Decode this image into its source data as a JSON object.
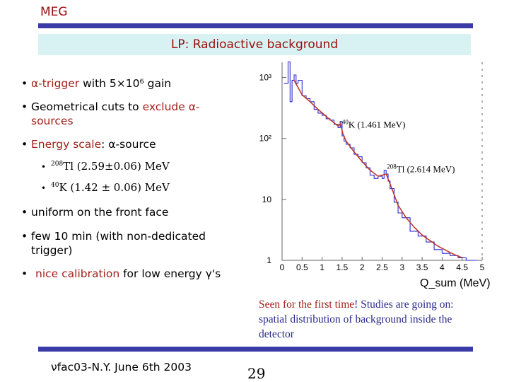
{
  "header": {
    "org": "MEG",
    "title": "LP: Radioactive background"
  },
  "bullets": [
    {
      "pre": "",
      "hl": "α-trigger",
      "post": " with 5×10⁶ gain"
    },
    {
      "pre": "Geometrical cuts to ",
      "hl": "exclude α-",
      "post": "",
      "line2": "sources"
    },
    {
      "pre": "",
      "hl": "Energy scale",
      "post": ": α-source"
    },
    {
      "pre": "uniform on the front face",
      "hl": "",
      "post": ""
    },
    {
      "pre": "few 10 min (with non-dedicated",
      "hl": "",
      "post": "",
      "line2": "trigger)"
    },
    {
      "pre": "",
      "hl": "nice calibration",
      "post": " for low energy γ's"
    }
  ],
  "sub_bullets": [
    {
      "iso": "208",
      "text": "Tl  (2.59±0.06) MeV"
    },
    {
      "iso": "40",
      "text": "K (1.42 ± 0.06) MeV"
    }
  ],
  "caption": {
    "red": "Seen for the first time",
    "rest1": "! Studies are going on:",
    "line2": "spatial distribution of background inside the",
    "line3": "detector"
  },
  "footer": {
    "text": "νfac03-N.Y. June 6th 2003",
    "page": "29"
  },
  "colors": {
    "bar": "#3a3aa8",
    "title_bg": "#d8f2f4",
    "highlight": "#a0201a",
    "data_red": "#c0392b",
    "data_blue": "#2a2ad0"
  },
  "chart_data": {
    "type": "line",
    "xlabel": "Q_sum (MeV)",
    "x_ticks": [
      "0",
      "0.5",
      "1",
      "1.5",
      "2",
      "2.5",
      "3",
      "3.5",
      "4",
      "4.5",
      "5"
    ],
    "y_ticks": [
      "1",
      "10",
      "10²",
      "10³"
    ],
    "xlim": [
      0,
      5
    ],
    "ylim_log10": [
      0,
      3.25
    ],
    "scale_y": "log",
    "annotations": [
      {
        "iso": "40",
        "text": "K (1.461 MeV)",
        "x": 1.5,
        "y": 150
      },
      {
        "iso": "208",
        "text": "Tl (2.614 MeV)",
        "x": 2.62,
        "y": 28
      }
    ],
    "series": [
      {
        "style": "histogram",
        "x": [
          0.05,
          0.15,
          0.2,
          0.25,
          0.3,
          0.35,
          0.4,
          0.5,
          0.6,
          0.7,
          0.8,
          0.9,
          1.0,
          1.1,
          1.2,
          1.3,
          1.4,
          1.45,
          1.5,
          1.55,
          1.6,
          1.7,
          1.8,
          1.9,
          2.0,
          2.1,
          2.2,
          2.3,
          2.4,
          2.5,
          2.55,
          2.6,
          2.65,
          2.7,
          2.8,
          2.9,
          3.0,
          3.2,
          3.4,
          3.6,
          3.8,
          4.0,
          4.2,
          4.4,
          4.6,
          4.8
        ],
        "y": [
          800,
          1800,
          400,
          900,
          1100,
          800,
          900,
          500,
          450,
          400,
          300,
          260,
          240,
          210,
          200,
          170,
          150,
          190,
          110,
          90,
          80,
          70,
          55,
          50,
          40,
          33,
          25,
          22,
          24,
          22,
          30,
          26,
          20,
          15,
          9,
          6,
          5,
          3,
          2.5,
          2,
          1.5,
          1.3,
          1.2,
          1.1,
          1.0,
          1.0
        ]
      },
      {
        "style": "fit",
        "x": [
          0.3,
          0.5,
          0.7,
          0.9,
          1.1,
          1.3,
          1.4,
          1.46,
          1.52,
          1.6,
          1.8,
          2.0,
          2.2,
          2.4,
          2.6,
          2.7,
          2.9,
          3.1,
          3.3,
          3.5,
          3.7,
          3.9,
          4.1,
          4.3,
          4.5
        ],
        "y": [
          900,
          520,
          400,
          300,
          230,
          180,
          160,
          175,
          120,
          90,
          60,
          42,
          30,
          24,
          26,
          18,
          8,
          5,
          3.5,
          2.6,
          2.1,
          1.7,
          1.45,
          1.25,
          1.1
        ]
      }
    ]
  }
}
